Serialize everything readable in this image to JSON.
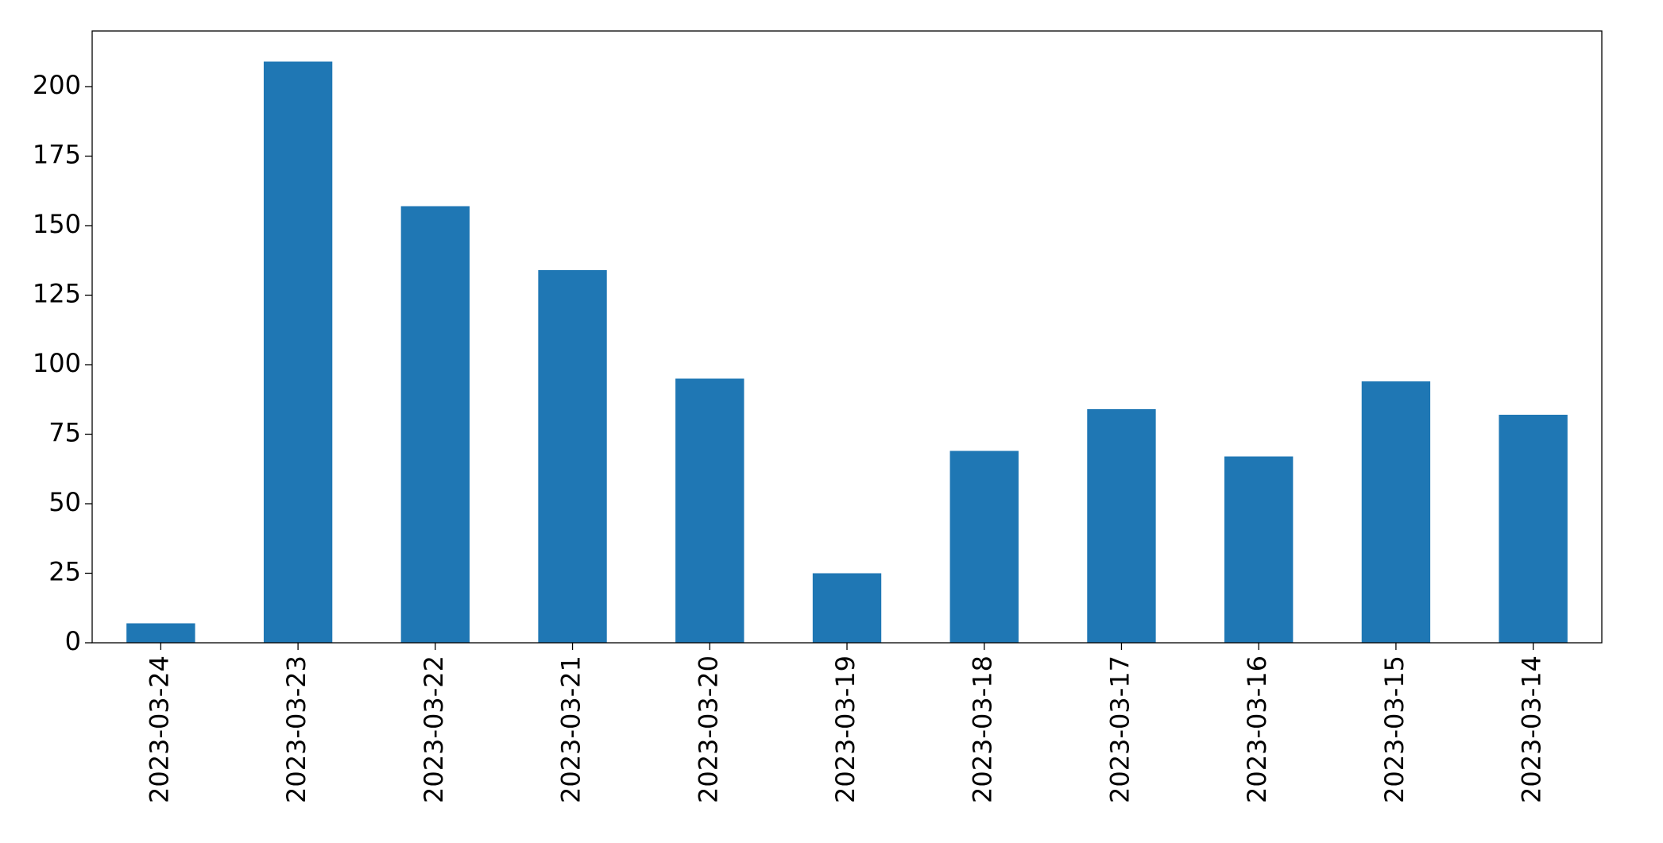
{
  "chart_data": {
    "type": "bar",
    "categories": [
      "2023-03-24",
      "2023-03-23",
      "2023-03-22",
      "2023-03-21",
      "2023-03-20",
      "2023-03-19",
      "2023-03-18",
      "2023-03-17",
      "2023-03-16",
      "2023-03-15",
      "2023-03-14"
    ],
    "values": [
      7,
      209,
      157,
      134,
      95,
      25,
      69,
      84,
      67,
      94,
      82
    ],
    "color": "#1f77b4",
    "ylim": [
      0,
      220
    ],
    "yticks": [
      0,
      25,
      50,
      75,
      100,
      125,
      150,
      175,
      200
    ],
    "grid": false
  }
}
